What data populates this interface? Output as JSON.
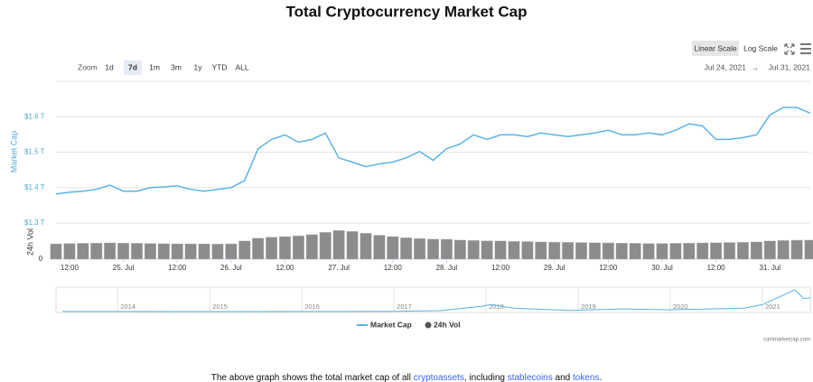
{
  "header": {
    "title": "Total Cryptocurrency Market Cap"
  },
  "toolbar": {
    "zoom_label": "Zoom",
    "zoom_options": [
      "1d",
      "7d",
      "1m",
      "3m",
      "1y",
      "YTD",
      "ALL"
    ],
    "selected_zoom": 1,
    "scale_options": [
      "Linear Scale",
      "Log Scale"
    ],
    "selected_scale": 0,
    "range_start": "Jul 24, 2021",
    "range_separator": "→",
    "range_end": "Jul 31, 2021"
  },
  "chart_data": {
    "type": "line",
    "ylabel": "Market Cap",
    "y2label": "24h Vol",
    "categories": [
      null,
      "12:00",
      null,
      null,
      null,
      "25. Jul",
      null,
      null,
      null,
      "12:00",
      null,
      null,
      null,
      "26. Jul",
      null,
      null,
      null,
      "12:00",
      null,
      null,
      null,
      "27. Jul",
      null,
      null,
      null,
      "12:00",
      null,
      null,
      null,
      "28. Jul",
      null,
      null,
      null,
      "12:00",
      null,
      null,
      null,
      "29. Jul",
      null,
      null,
      null,
      "12:00",
      null,
      null,
      null,
      "30. Jul",
      null,
      null,
      null,
      "12:00",
      null,
      null,
      null,
      "31. Jul",
      null,
      null,
      null
    ],
    "series": [
      {
        "name": "Market Cap",
        "color": "#5ab4e5",
        "values": [
          1.382,
          1.387,
          1.39,
          1.395,
          1.407,
          1.39,
          1.39,
          1.4,
          1.402,
          1.405,
          1.395,
          1.39,
          1.395,
          1.4,
          1.42,
          1.51,
          1.536,
          1.549,
          1.528,
          1.536,
          1.554,
          1.484,
          1.472,
          1.459,
          1.467,
          1.472,
          1.484,
          1.502,
          1.477,
          1.51,
          1.523,
          1.549,
          1.536,
          1.549,
          1.549,
          1.544,
          1.554,
          1.549,
          1.544,
          1.549,
          1.554,
          1.562,
          1.549,
          1.549,
          1.554,
          1.549,
          1.562,
          1.58,
          1.574,
          1.536,
          1.536,
          1.541,
          1.549,
          1.605,
          1.626,
          1.626,
          1.61
        ]
      },
      {
        "name": "24h Vol",
        "type": "bar",
        "axis": "y2",
        "color": "#8c8c8c",
        "values": [
          80,
          82,
          83,
          84,
          85,
          84,
          83,
          82,
          81,
          80,
          80,
          80,
          79,
          80,
          95,
          110,
          115,
          118,
          122,
          128,
          140,
          150,
          145,
          135,
          125,
          118,
          112,
          108,
          105,
          104,
          100,
          98,
          96,
          95,
          93,
          92,
          90,
          89,
          88,
          87,
          86,
          85,
          84,
          83,
          82,
          82,
          83,
          84,
          85,
          86,
          87,
          88,
          90,
          95,
          98,
          99,
          100
        ]
      }
    ],
    "ylim": [
      1.3,
      1.7
    ],
    "yticks": [
      {
        "value": 1.3,
        "label": "$1.3 T"
      },
      {
        "value": 1.4,
        "label": "$1.4 T"
      },
      {
        "value": 1.5,
        "label": "$1.5 T"
      },
      {
        "value": 1.6,
        "label": "$1.6 T"
      }
    ],
    "y2lim": [
      0,
      160
    ],
    "y2ticks": [
      0
    ],
    "grid": true
  },
  "navigator": {
    "type": "line",
    "color": "#5ab4e5",
    "x": [
      2013.4,
      2014,
      2015,
      2016,
      2017,
      2017.5,
      2017.95,
      2018.05,
      2018.3,
      2018.9,
      2019.5,
      2020,
      2020.8,
      2021,
      2021.35,
      2021.45,
      2021.52
    ],
    "values": [
      0.01,
      0.01,
      0.005,
      0.007,
      0.02,
      0.1,
      0.6,
      0.8,
      0.4,
      0.13,
      0.3,
      0.2,
      0.4,
      0.8,
      2.5,
      1.5,
      1.6
    ],
    "xlim": [
      2013.33,
      2021.52
    ],
    "xticks": [
      2014,
      2015,
      2016,
      2017,
      2018,
      2019,
      2020,
      2021
    ],
    "ylim": [
      0,
      2.6
    ]
  },
  "credit": "coinmarketcap.com",
  "description": [
    {
      "text": "The above graph shows the total market cap of all ",
      "link": false
    },
    {
      "text": "cryptoassets",
      "link": true
    },
    {
      "text": ", including ",
      "link": false
    },
    {
      "text": "stablecoins",
      "link": true
    },
    {
      "text": " and ",
      "link": false
    },
    {
      "text": "tokens",
      "link": true
    },
    {
      "text": ".",
      "link": false
    }
  ]
}
